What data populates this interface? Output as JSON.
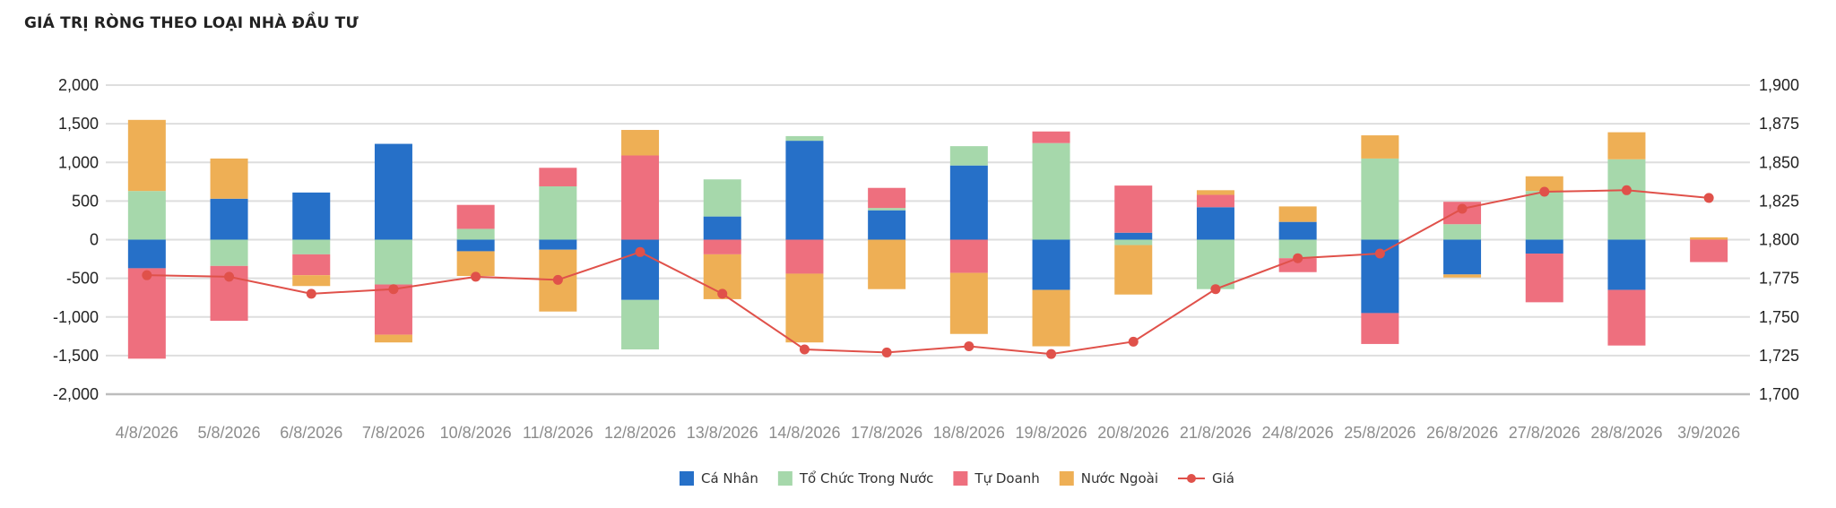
{
  "chart_data": {
    "type": "bar",
    "title": "GIÁ TRỊ RÒNG THEO LOẠI NHÀ ĐẦU TƯ",
    "categories": [
      "4/8/2026",
      "5/8/2026",
      "6/8/2026",
      "7/8/2026",
      "10/8/2026",
      "11/8/2026",
      "12/8/2026",
      "13/8/2026",
      "14/8/2026",
      "17/8/2026",
      "18/8/2026",
      "19/8/2026",
      "20/8/2026",
      "21/8/2026",
      "24/8/2026",
      "25/8/2026",
      "26/8/2026",
      "27/8/2026",
      "28/8/2026",
      "3/9/2026"
    ],
    "y_ticks": [
      "2,000",
      "1,500",
      "1,000",
      "500",
      "0",
      "-500",
      "-1,000",
      "-1,500",
      "-2,000"
    ],
    "y2_ticks": [
      "1,900",
      "1,875",
      "1,850",
      "1,825",
      "1,800",
      "1,775",
      "1,750",
      "1,725",
      "1,700"
    ],
    "ylim": [
      -2000,
      2000
    ],
    "y2lim": [
      1700,
      1900
    ],
    "grid": true,
    "legend_position": "bottom",
    "series": [
      {
        "name": "Cá Nhân",
        "kind": "bar",
        "color": "#2670c8",
        "values": [
          -370,
          530,
          610,
          1240,
          -150,
          -130,
          -780,
          300,
          1280,
          380,
          960,
          -650,
          90,
          420,
          230,
          -950,
          -450,
          -180,
          -650,
          0
        ]
      },
      {
        "name": "Tổ Chức Trong Nước",
        "kind": "bar",
        "color": "#a6d8ab",
        "values": [
          630,
          -340,
          -190,
          -580,
          140,
          690,
          -640,
          480,
          60,
          30,
          250,
          1250,
          -70,
          -640,
          -240,
          1050,
          200,
          630,
          1040,
          0
        ]
      },
      {
        "name": "Tự Doanh",
        "kind": "bar",
        "color": "#ee6f7e",
        "values": [
          -1170,
          -710,
          -270,
          -650,
          310,
          240,
          1090,
          -190,
          -440,
          260,
          -430,
          150,
          610,
          160,
          -180,
          -400,
          290,
          -630,
          -720,
          -290
        ]
      },
      {
        "name": "Nước Ngoài",
        "kind": "bar",
        "color": "#eeaf55",
        "values": [
          920,
          520,
          -140,
          -100,
          -320,
          -800,
          330,
          -580,
          -890,
          -640,
          -790,
          -730,
          -640,
          60,
          200,
          300,
          -40,
          190,
          350,
          30
        ]
      },
      {
        "name": "Giá",
        "kind": "line",
        "axis": "right",
        "color": "#e0514a",
        "values": [
          1777,
          1776,
          1765,
          1768,
          1776,
          1774,
          1792,
          1765,
          1729,
          1727,
          1731,
          1726,
          1734,
          1768,
          1788,
          1791,
          1820,
          1831,
          1832,
          1827
        ]
      }
    ]
  }
}
